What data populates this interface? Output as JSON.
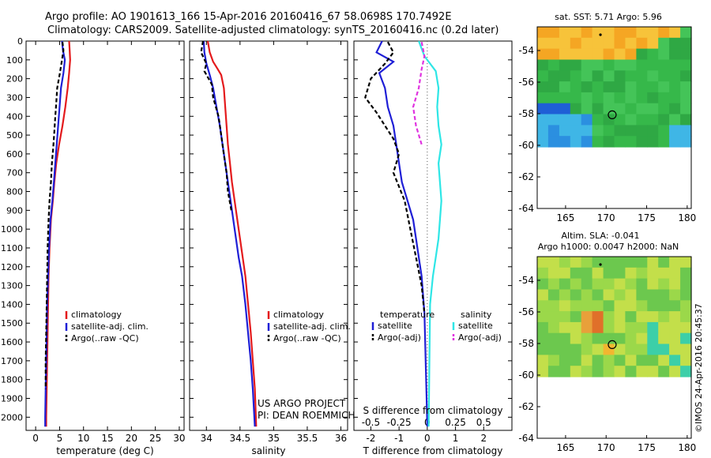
{
  "header": {
    "line1": "Argo profile: AO 1901613_166 15-Apr-2016 20160416_67 58.0698S 170.7492E",
    "line2": "Climatology: CARS2009. Satellite-adjusted climatology: synTS_20160416.nc (0.2d later)"
  },
  "credit": "©IMOS 24-Apr-2016 20:45:37",
  "project_note": [
    "US ARGO PROJECT",
    "PI: DEAN ROEMMICH"
  ],
  "colors": {
    "climatology": "#e41a1c",
    "satellite": "#1f1fd6",
    "argo": "#000000",
    "sal_satellite": "#2ee6e6",
    "sal_argo": "#e033e0"
  },
  "chart_data": [
    {
      "type": "line",
      "id": "temperature",
      "xlabel": "temperature (deg C)",
      "xlim": [
        -2,
        31
      ],
      "ylim": [
        2070,
        0
      ],
      "xticks": [
        0,
        5,
        10,
        15,
        20,
        25,
        30
      ],
      "yticks": [
        0,
        100,
        200,
        300,
        400,
        500,
        600,
        700,
        800,
        900,
        1000,
        1100,
        1200,
        1300,
        1400,
        1500,
        1600,
        1700,
        1800,
        1900,
        2000
      ],
      "legend": [
        "climatology",
        "satellite-adj. clim.",
        "Argo(..raw -QC)"
      ],
      "series": [
        {
          "name": "climatology",
          "color": "#e41a1c",
          "dash": "",
          "x": [
            7.0,
            7.1,
            7.2,
            7.0,
            6.7,
            6.2,
            5.6,
            4.9,
            4.3,
            3.9,
            3.6,
            3.2,
            2.9,
            2.7,
            2.6,
            2.5,
            2.4,
            2.3,
            2.2,
            2.2
          ],
          "y": [
            0,
            50,
            100,
            170,
            250,
            350,
            450,
            550,
            650,
            750,
            850,
            950,
            1100,
            1250,
            1400,
            1550,
            1700,
            1850,
            2000,
            2050
          ]
        },
        {
          "name": "satellite-adj. clim.",
          "color": "#1f1fd6",
          "dash": "",
          "x": [
            5.5,
            5.7,
            6.1,
            5.8,
            5.3,
            5.0,
            4.7,
            4.4,
            4.1,
            3.8,
            3.5,
            3.1,
            2.8,
            2.6,
            2.4,
            2.3,
            2.2,
            2.1,
            2.0,
            2.0
          ],
          "y": [
            0,
            50,
            100,
            170,
            250,
            350,
            450,
            550,
            650,
            750,
            850,
            950,
            1100,
            1250,
            1400,
            1550,
            1700,
            1850,
            2000,
            2050
          ]
        },
        {
          "name": "Argo(..raw -QC)",
          "color": "#000000",
          "dash": "5,3",
          "x": [
            5.6,
            5.8,
            5.5,
            5.0,
            4.5,
            4.3,
            4.1,
            3.9,
            3.7,
            3.4,
            3.2,
            2.9,
            2.7,
            2.5,
            2.4,
            2.3,
            2.2,
            2.1,
            2.1
          ],
          "y": [
            5,
            50,
            100,
            180,
            250,
            330,
            400,
            480,
            560,
            650,
            750,
            850,
            950,
            1100,
            1250,
            1400,
            1550,
            1700,
            1850
          ]
        }
      ]
    },
    {
      "type": "line",
      "id": "salinity",
      "xlabel": "salinity",
      "xlim": [
        33.75,
        36.1
      ],
      "ylim": [
        2070,
        0
      ],
      "xticks": [
        34,
        34.5,
        35,
        35.5,
        36
      ],
      "legend": [
        "climatology",
        "satellite-adj. clim.",
        "Argo(..raw -QC)"
      ],
      "series": [
        {
          "name": "climatology",
          "color": "#e41a1c",
          "dash": "",
          "x": [
            34.02,
            34.05,
            34.1,
            34.17,
            34.22,
            34.26,
            34.28,
            34.3,
            34.32,
            34.35,
            34.38,
            34.42,
            34.46,
            34.5,
            34.54,
            34.58,
            34.62,
            34.66,
            34.69,
            34.72,
            34.74
          ],
          "y": [
            0,
            60,
            110,
            150,
            180,
            250,
            350,
            450,
            550,
            650,
            750,
            850,
            950,
            1050,
            1150,
            1250,
            1400,
            1550,
            1700,
            1850,
            2050
          ]
        },
        {
          "name": "satellite-adj. clim.",
          "color": "#1f1fd6",
          "dash": "",
          "x": [
            33.96,
            33.97,
            34.0,
            34.05,
            34.1,
            34.15,
            34.2,
            34.24,
            34.28,
            34.32,
            34.36,
            34.4,
            34.44,
            34.48,
            34.53,
            34.58,
            34.62,
            34.66,
            34.69,
            34.72
          ],
          "y": [
            0,
            60,
            120,
            180,
            250,
            350,
            450,
            550,
            650,
            750,
            850,
            950,
            1050,
            1150,
            1250,
            1400,
            1550,
            1700,
            1850,
            2050
          ]
        },
        {
          "name": "Argo(..raw -QC)",
          "color": "#000000",
          "dash": "5,3",
          "x": [
            33.95,
            33.92,
            34.0,
            33.97,
            34.08,
            34.1,
            34.18,
            34.22,
            34.25,
            34.3,
            34.32,
            34.37
          ],
          "y": [
            0,
            60,
            120,
            160,
            230,
            300,
            400,
            500,
            580,
            700,
            800,
            900
          ]
        }
      ]
    },
    {
      "type": "line",
      "id": "difference",
      "xlabel": "T difference from climatology",
      "xlabel2": "S difference from climatology",
      "xlim": [
        -2.6,
        3.0
      ],
      "ylim": [
        2070,
        0
      ],
      "xticks": [
        -2,
        -1,
        0,
        1,
        2
      ],
      "xticklabels_s": [
        "-0.5",
        "-0.25",
        "0",
        "0.25",
        "0.5"
      ],
      "legend_groups": [
        {
          "title": "temperature",
          "items": [
            "satellite",
            "Argo(-adj)"
          ]
        },
        {
          "title": "salinity",
          "items": [
            "satellite",
            "Argo(-adj)"
          ]
        }
      ],
      "series": [
        {
          "name": "temperature satellite",
          "color": "#1f1fd6",
          "dash": "",
          "x": [
            -1.6,
            -1.8,
            -1.2,
            -1.7,
            -1.5,
            -1.4,
            -1.2,
            -1.1,
            -1.0,
            -0.9,
            -0.7,
            -0.5,
            -0.4,
            -0.3,
            -0.2,
            -0.1,
            0.0
          ],
          "y": [
            0,
            60,
            110,
            170,
            250,
            350,
            450,
            550,
            650,
            750,
            850,
            950,
            1050,
            1150,
            1250,
            1450,
            2050
          ]
        },
        {
          "name": "temperature Argo(-adj)",
          "color": "#000000",
          "dash": "5,3",
          "x": [
            -1.4,
            -1.2,
            -1.5,
            -2.0,
            -2.2,
            -1.8,
            -1.5,
            -1.2,
            -1.0,
            -1.2,
            -0.8,
            -0.6,
            -0.4,
            -0.2,
            -0.1
          ],
          "y": [
            5,
            60,
            120,
            200,
            300,
            380,
            450,
            520,
            600,
            700,
            850,
            1000,
            1150,
            1300,
            1450
          ]
        },
        {
          "name": "salinity satellite",
          "color": "#2ee6e6",
          "dash": "",
          "x": [
            -0.3,
            -0.1,
            0.3,
            0.4,
            0.35,
            0.4,
            0.5,
            0.4,
            0.45,
            0.5,
            0.45,
            0.4,
            0.3,
            0.2,
            0.1,
            0.05
          ],
          "y": [
            0,
            80,
            160,
            250,
            350,
            450,
            550,
            650,
            750,
            850,
            950,
            1050,
            1150,
            1250,
            1400,
            2050
          ]
        },
        {
          "name": "salinity Argo(-adj)",
          "color": "#e033e0",
          "dash": "5,3",
          "x": [
            -0.2,
            -0.1,
            -0.2,
            -0.3,
            -0.5,
            -0.4,
            -0.2
          ],
          "y": [
            5,
            80,
            150,
            250,
            350,
            450,
            550
          ]
        }
      ]
    },
    {
      "type": "heatmap",
      "id": "sst_map",
      "title": "sat. SST: 5.71 Argo: 5.96",
      "xticks": [
        165,
        170,
        175,
        180
      ],
      "yticks": [
        -54,
        -56,
        -58,
        -60,
        -62,
        -64
      ],
      "xlim": [
        161.5,
        180.5
      ],
      "ylim": [
        -64,
        -52.5
      ]
    },
    {
      "type": "heatmap",
      "id": "sla_map",
      "title": "Altim. SLA: -0.041",
      "subtitle": "Argo h1000: 0.0047 h2000: NaN",
      "xticks": [
        165,
        170,
        175,
        180
      ],
      "yticks": [
        -54,
        -56,
        -58,
        -60,
        -62,
        -64
      ],
      "xlim": [
        161.5,
        180.5
      ],
      "ylim": [
        -64,
        -52.5
      ]
    }
  ]
}
